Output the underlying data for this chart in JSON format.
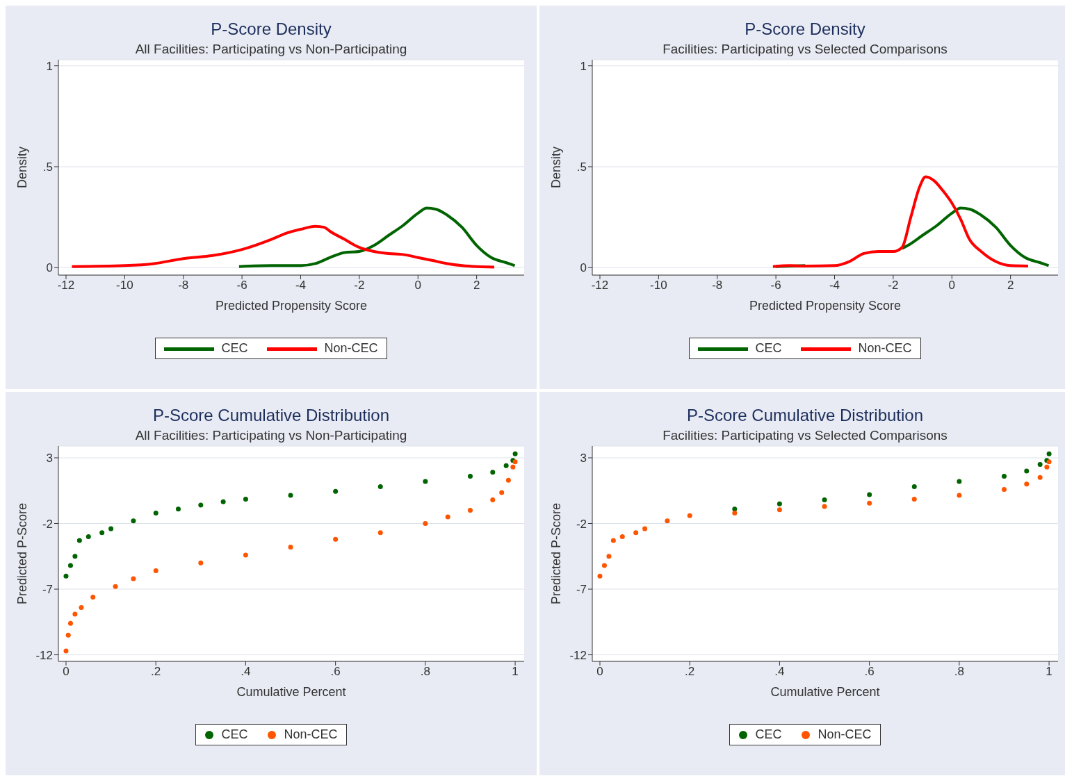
{
  "chart_data": [
    {
      "type": "line",
      "title": "P-Score Density",
      "subtitle": "All Facilities: Participating vs Non-Participating",
      "xlabel": "Predicted Propensity Score",
      "ylabel": "Density",
      "xlim": [
        -12.26,
        3.62
      ],
      "ylim": [
        -0.037,
        1.03
      ],
      "xticks": [
        -12,
        -10,
        -8,
        -6,
        -4,
        -2,
        0,
        2
      ],
      "yticks": [
        0,
        {
          "value": 0.5,
          "label": ".5"
        },
        1
      ],
      "grid": "y",
      "legend": "bottom",
      "series": [
        {
          "name": "CEC",
          "color": "#006400",
          "x": [
            -6.1,
            -5,
            -4,
            -3.5,
            -3,
            -2.5,
            -2,
            -1.5,
            -1,
            -0.5,
            0,
            0.3,
            0.6,
            1,
            1.5,
            2,
            2.5,
            3,
            3.3
          ],
          "values": [
            0.005,
            0.01,
            0.01,
            0.02,
            0.05,
            0.075,
            0.08,
            0.11,
            0.16,
            0.21,
            0.27,
            0.295,
            0.29,
            0.26,
            0.2,
            0.11,
            0.05,
            0.025,
            0.01
          ]
        },
        {
          "name": "Non-CEC",
          "color": "#ff0000",
          "x": [
            -11.8,
            -10,
            -9,
            -8,
            -7,
            -6,
            -5,
            -4.5,
            -4,
            -3.5,
            -3.2,
            -3,
            -2.5,
            -2,
            -1.5,
            -1,
            -0.5,
            0,
            0.5,
            1,
            1.5,
            2,
            2.6
          ],
          "values": [
            0.005,
            0.01,
            0.02,
            0.045,
            0.06,
            0.09,
            0.14,
            0.17,
            0.19,
            0.205,
            0.2,
            0.18,
            0.14,
            0.1,
            0.08,
            0.07,
            0.065,
            0.05,
            0.035,
            0.02,
            0.01,
            0.005,
            0.003
          ]
        }
      ]
    },
    {
      "type": "line",
      "title": "P-Score Density",
      "subtitle": "Facilities: Participating vs Selected Comparisons",
      "xlabel": "Predicted Propensity Score",
      "ylabel": "Density",
      "xlim": [
        -12.26,
        3.62
      ],
      "ylim": [
        -0.037,
        1.03
      ],
      "xticks": [
        -12,
        -10,
        -8,
        -6,
        -4,
        -2,
        0,
        2
      ],
      "yticks": [
        0,
        {
          "value": 0.5,
          "label": ".5"
        },
        1
      ],
      "grid": "y",
      "legend": "bottom",
      "series": [
        {
          "name": "CEC",
          "color": "#006400",
          "x": [
            -6,
            -5,
            -4,
            -3,
            -2.5,
            -2,
            -1.7,
            -1.5,
            -1,
            -0.5,
            0,
            0.3,
            0.6,
            1,
            1.5,
            2,
            2.5,
            3,
            3.3
          ],
          "values": [
            0.005,
            0.01,
            null,
            null,
            null,
            null,
            0.095,
            0.11,
            0.16,
            0.21,
            0.27,
            0.295,
            0.29,
            0.26,
            0.2,
            0.11,
            0.05,
            0.025,
            0.01
          ]
        },
        {
          "name": "Non-CEC",
          "color": "#ff0000",
          "x": [
            -6.1,
            -5.5,
            -5,
            -4,
            -3.5,
            -3,
            -2.5,
            -2,
            -1.7,
            -1.4,
            -1.1,
            -0.9,
            -0.6,
            -0.3,
            0,
            0.3,
            0.6,
            1,
            1.5,
            2,
            2.6
          ],
          "values": [
            0.005,
            0.01,
            0.008,
            0.01,
            0.03,
            0.07,
            0.08,
            0.08,
            0.1,
            0.25,
            0.4,
            0.45,
            0.43,
            0.38,
            0.32,
            0.24,
            0.14,
            0.08,
            0.03,
            0.01,
            0.008
          ]
        }
      ]
    },
    {
      "type": "scatter",
      "title": "P-Score Cumulative Distribution",
      "subtitle": "All Facilities: Participating vs Non-Participating",
      "xlabel": "Cumulative Percent",
      "ylabel": "Predicted P-Score",
      "xlim": [
        -0.017,
        1.02
      ],
      "ylim": [
        -12.5,
        3.9
      ],
      "xticks": [
        0,
        {
          "value": 0.2,
          "label": ".2"
        },
        {
          "value": 0.4,
          "label": ".4"
        },
        {
          "value": 0.6,
          "label": ".6"
        },
        {
          "value": 0.8,
          "label": ".8"
        },
        1
      ],
      "yticks": [
        -12,
        -7,
        -2,
        3
      ],
      "grid": "y",
      "legend": "bottom",
      "marker": "circle",
      "series": [
        {
          "name": "CEC",
          "color": "#006400",
          "x": [
            0,
            0.01,
            0.02,
            0.03,
            0.05,
            0.08,
            0.1,
            0.15,
            0.2,
            0.25,
            0.3,
            0.35,
            0.4,
            0.5,
            0.6,
            0.7,
            0.8,
            0.9,
            0.95,
            0.98,
            0.995,
            1
          ],
          "values": [
            -6.0,
            -5.2,
            -4.5,
            -3.3,
            -3.0,
            -2.7,
            -2.4,
            -1.8,
            -1.2,
            -0.9,
            -0.6,
            -0.35,
            -0.15,
            0.15,
            0.45,
            0.8,
            1.2,
            1.6,
            1.9,
            2.4,
            2.8,
            3.3
          ]
        },
        {
          "name": "Non-CEC",
          "color": "#ff5500",
          "x": [
            0,
            0.005,
            0.01,
            0.02,
            0.034,
            0.06,
            0.11,
            0.15,
            0.2,
            0.3,
            0.4,
            0.5,
            0.6,
            0.7,
            0.8,
            0.85,
            0.9,
            0.95,
            0.97,
            0.985,
            0.995,
            1
          ],
          "values": [
            -11.7,
            -10.5,
            -9.6,
            -8.9,
            -8.4,
            -7.6,
            -6.8,
            -6.2,
            -5.6,
            -5.0,
            -4.4,
            -3.8,
            -3.2,
            -2.7,
            -2.0,
            -1.5,
            -1.0,
            -0.2,
            0.35,
            1.3,
            2.3,
            2.7
          ]
        }
      ]
    },
    {
      "type": "scatter",
      "title": "P-Score Cumulative Distribution",
      "subtitle": "Facilities: Participating vs Selected Comparisons",
      "xlabel": "Cumulative Percent",
      "ylabel": "Predicted P-Score",
      "xlim": [
        -0.017,
        1.02
      ],
      "ylim": [
        -12.5,
        3.9
      ],
      "xticks": [
        0,
        {
          "value": 0.2,
          "label": ".2"
        },
        {
          "value": 0.4,
          "label": ".4"
        },
        {
          "value": 0.6,
          "label": ".6"
        },
        {
          "value": 0.8,
          "label": ".8"
        },
        1
      ],
      "yticks": [
        -12,
        -7,
        -2,
        3
      ],
      "grid": "y",
      "legend": "bottom",
      "marker": "circle",
      "series": [
        {
          "name": "CEC",
          "color": "#006400",
          "x": [
            0.3,
            0.4,
            0.5,
            0.6,
            0.7,
            0.8,
            0.9,
            0.95,
            0.98,
            0.995,
            1
          ],
          "values": [
            -0.9,
            -0.5,
            -0.2,
            0.2,
            0.8,
            1.2,
            1.6,
            2.0,
            2.5,
            2.8,
            3.3
          ]
        },
        {
          "name": "Non-CEC",
          "color": "#ff5500",
          "x": [
            0,
            0.01,
            0.02,
            0.03,
            0.05,
            0.08,
            0.1,
            0.15,
            0.2,
            0.3,
            0.4,
            0.5,
            0.6,
            0.7,
            0.8,
            0.9,
            0.95,
            0.98,
            0.995,
            1
          ],
          "values": [
            -6.0,
            -5.2,
            -4.5,
            -3.3,
            -3.0,
            -2.7,
            -2.4,
            -1.8,
            -1.4,
            -1.2,
            -0.95,
            -0.7,
            -0.45,
            -0.15,
            0.15,
            0.6,
            1.0,
            1.5,
            2.3,
            2.7
          ]
        }
      ]
    }
  ]
}
